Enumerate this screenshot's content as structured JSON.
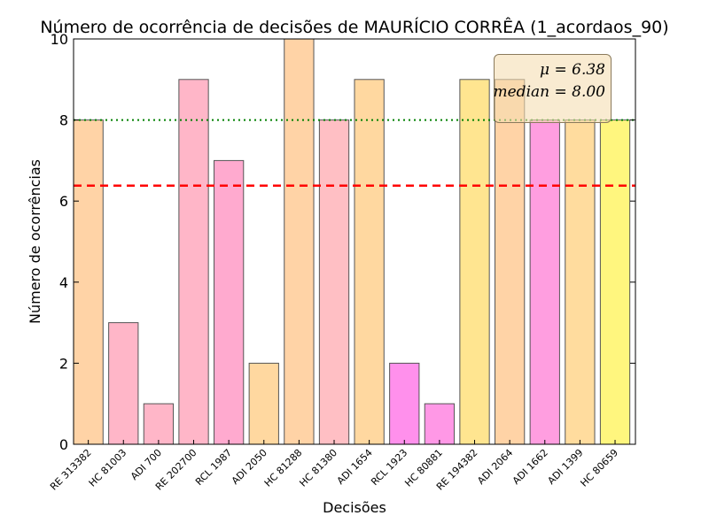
{
  "chart_data": {
    "type": "bar",
    "title": "Número de ocorrência de decisões de MAURÍCIO CORRÊA (1_acordaos_90)",
    "xlabel": "Decisões",
    "ylabel": "Número de ocorrências",
    "ylim": [
      0,
      10
    ],
    "yticks": [
      "0",
      "2",
      "4",
      "6",
      "8",
      "10"
    ],
    "categories": [
      "RE 313382",
      "HC 81003",
      "ADI 700",
      "RE 202700",
      "RCL 1987",
      "ADI 2050",
      "HC 81288",
      "HC 81380",
      "ADI 1654",
      "RCL 1923",
      "HC 80881",
      "RE 194382",
      "ADI 2064",
      "ADI 1662",
      "ADI 1399",
      "HC 80659"
    ],
    "values": [
      8,
      3,
      1,
      9,
      7,
      2,
      10,
      8,
      9,
      2,
      1,
      9,
      9,
      8,
      8,
      8
    ],
    "bar_colors": [
      "#ffd3a6",
      "#ffb6c8",
      "#ffb6c8",
      "#ffb6c8",
      "#ffaacf",
      "#ffd8a0",
      "#ffd3a6",
      "#ffbfc4",
      "#ffd8a0",
      "#ff90ec",
      "#ff98e6",
      "#ffe590",
      "#ffd3a6",
      "#ff9ee0",
      "#ffdc9e",
      "#fff67e"
    ],
    "mean": 6.38,
    "median": 8.0,
    "mean_line_color": "#ff0000",
    "median_line_color": "#008000",
    "legend_placement": "top-right",
    "grid": false
  },
  "stats": {
    "mean_text": "μ = 6.38",
    "median_text": "median = 8.00"
  }
}
